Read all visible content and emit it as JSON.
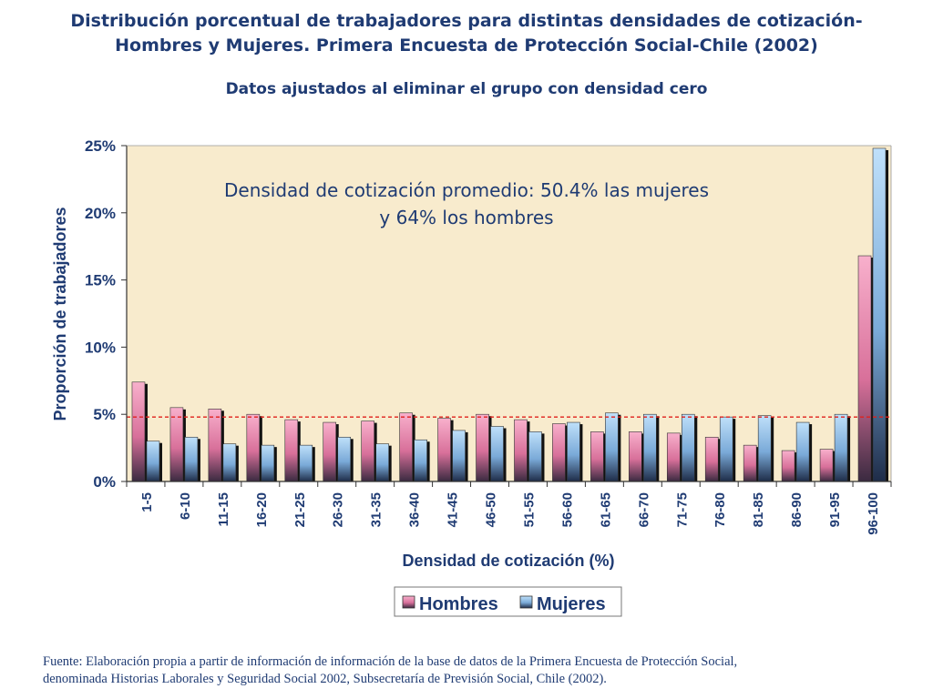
{
  "title_line1": "Distribución porcentual de trabajadores para distintas densidades de cotización-",
  "title_line2": "Hombres y Mujeres. Primera Encuesta de Protección Social-Chile (2002)",
  "subtitle": "Datos ajustados al eliminar el grupo con densidad cero",
  "annotation_line1": "Densidad de cotización promedio: 50.4% las mujeres",
  "annotation_line2": "y 64% los hombres",
  "source_line1": "Fuente: Elaboración propia a partir de información de información de la base de datos de la Primera Encuesta de Protección Social,",
  "source_line2": "denominada Historias Laborales y Seguridad Social 2002, Subsecretaría de Previsión Social, Chile (2002).",
  "colors": {
    "hombres": "#f08cb4",
    "mujeres": "#96c8f0",
    "plot_bg": "#f8ebcd",
    "text": "#1f3b73",
    "reference_line": "#e0201c"
  },
  "chart_data": {
    "type": "bar",
    "xlabel": "Densidad de cotización (%)",
    "ylabel": "Proporción de trabajadores",
    "ylim": [
      0,
      25
    ],
    "yticks": [
      "0%",
      "5%",
      "10%",
      "15%",
      "20%",
      "25%"
    ],
    "legend_position": "bottom",
    "reference_line_value": 4.8,
    "categories": [
      "1-5",
      "6-10",
      "11-15",
      "16-20",
      "21-25",
      "26-30",
      "31-35",
      "36-40",
      "41-45",
      "46-50",
      "51-55",
      "56-60",
      "61-65",
      "66-70",
      "71-75",
      "76-80",
      "81-85",
      "86-90",
      "91-95",
      "96-100"
    ],
    "series": [
      {
        "name": "Hombres",
        "values": [
          7.4,
          5.5,
          5.4,
          5.0,
          4.6,
          4.4,
          4.5,
          5.1,
          4.7,
          5.0,
          4.6,
          4.3,
          3.7,
          3.7,
          3.6,
          3.3,
          2.7,
          2.3,
          2.4,
          16.8
        ]
      },
      {
        "name": "Mujeres",
        "values": [
          3.0,
          3.3,
          2.8,
          2.7,
          2.7,
          3.3,
          2.8,
          3.1,
          3.8,
          4.1,
          3.7,
          4.4,
          5.1,
          5.0,
          5.0,
          4.8,
          4.9,
          4.4,
          5.0,
          24.8
        ]
      }
    ]
  }
}
